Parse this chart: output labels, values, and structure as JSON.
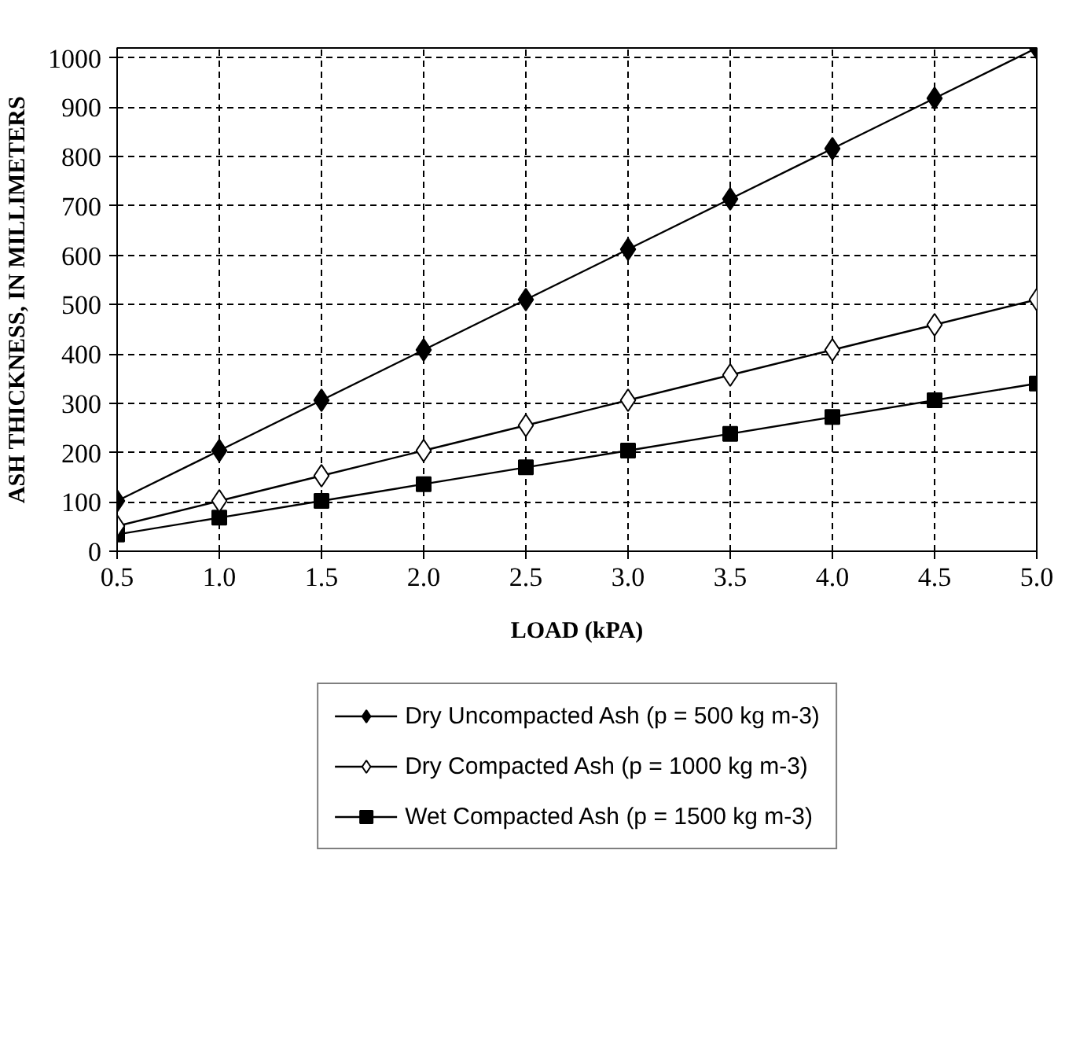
{
  "chart_data": {
    "type": "line",
    "xlabel": "LOAD (kPA)",
    "ylabel": "ASH THICKNESS, IN MILLIMETERS",
    "x": [
      0.5,
      1.0,
      1.5,
      2.0,
      2.5,
      3.0,
      3.5,
      4.0,
      4.5,
      5.0
    ],
    "xlim": [
      0.5,
      5.0
    ],
    "xticks": [
      {
        "value": 0.5,
        "label": "0.5"
      },
      {
        "value": 1.0,
        "label": "1.0"
      },
      {
        "value": 1.5,
        "label": "1.5"
      },
      {
        "value": 2.0,
        "label": "2.0"
      },
      {
        "value": 2.5,
        "label": "2.5"
      },
      {
        "value": 3.0,
        "label": "3.0"
      },
      {
        "value": 3.5,
        "label": "3.5"
      },
      {
        "value": 4.0,
        "label": "4.0"
      },
      {
        "value": 4.5,
        "label": "4.5"
      },
      {
        "value": 5.0,
        "label": "5.0"
      }
    ],
    "ylim": [
      0,
      1020
    ],
    "yticks": [
      0,
      100,
      200,
      300,
      400,
      500,
      600,
      700,
      800,
      900,
      1000
    ],
    "grid": true,
    "legend": "bottom",
    "line_style": "solid",
    "series": [
      {
        "name": "Dry Uncompacted Ash (p = 500 kg m-3)",
        "color": "#000000",
        "marker": "diamond",
        "values": [
          102,
          204,
          306,
          408,
          510,
          612,
          714,
          816,
          918,
          1020
        ]
      },
      {
        "name": "Dry Compacted Ash (p = 1000 kg m-3)",
        "color": "#ffffff",
        "marker": "diamond",
        "values": [
          51,
          102,
          153,
          204,
          255,
          306,
          357,
          408,
          459,
          510
        ]
      },
      {
        "name": "Wet Compacted Ash (p = 1500 kg m-3)",
        "color": "#000000",
        "marker": "square",
        "values": [
          34,
          68,
          102,
          136,
          170,
          204,
          238,
          272,
          306,
          340
        ]
      }
    ]
  }
}
